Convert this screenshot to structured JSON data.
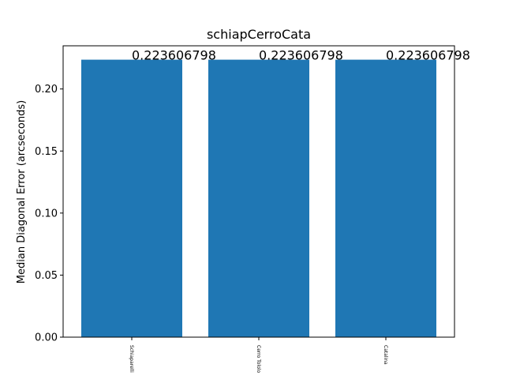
{
  "chart_data": {
    "type": "bar",
    "title": "schiapCerroCata",
    "xlabel": "",
    "ylabel": "Median Diagonal Error (arcseconds)",
    "categories": [
      "Schiaparelli",
      "Cerro Tololo",
      "Catalina"
    ],
    "values": [
      0.223606798,
      0.223606798,
      0.223606798
    ],
    "data_labels": [
      "0.223606798",
      "0.223606798",
      "0.223606798"
    ],
    "ylim": [
      0,
      0.2348
    ],
    "yticks": [
      0.0,
      0.05,
      0.1,
      0.15,
      0.2
    ],
    "ytick_labels": [
      "0.00",
      "0.05",
      "0.10",
      "0.15",
      "0.20"
    ],
    "bar_color": "#1f77b4",
    "grid": false,
    "legend": "none"
  }
}
